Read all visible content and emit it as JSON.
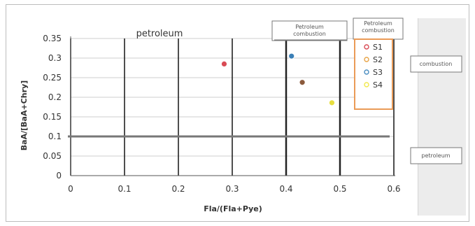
{
  "colors": {
    "s1": "#d94b55",
    "s2": "#e7a447",
    "s3": "#4a8ec1",
    "s4": "#f1e84b",
    "grid": "#222222",
    "threshold": "#777777",
    "legend_border": "#ea9b57"
  },
  "chart_data": {
    "type": "scatter",
    "title": "",
    "xlabel": "Fla/(Fla+Pye)",
    "ylabel": "BaA/[BaA+Chry]",
    "xlim": [
      0,
      0.6
    ],
    "ylim": [
      0,
      0.35
    ],
    "xticks": [
      "0",
      "0.1",
      "0.2",
      "0.3",
      "0.4",
      "0.5",
      "0.6"
    ],
    "yticks": [
      "0",
      "0.05",
      "0.1",
      "0.15",
      "0.2",
      "0.25",
      "0.3",
      "0.35"
    ],
    "threshold_y": 0.1,
    "legend_placement": "upper-right inside plot",
    "series": [
      {
        "name": "S1",
        "x": [
          0.285
        ],
        "y": [
          0.285
        ]
      },
      {
        "name": "S2",
        "x": [
          0.43
        ],
        "y": [
          0.238
        ]
      },
      {
        "name": "S3",
        "x": [
          0.41
        ],
        "y": [
          0.305
        ]
      },
      {
        "name": "S4",
        "x": [
          0.485
        ],
        "y": [
          0.186
        ]
      }
    ],
    "annotations": [
      {
        "text": "petroleum"
      },
      {
        "text": "Petroleum combustion"
      },
      {
        "text": "Petroleum combustion"
      },
      {
        "text": "combustion"
      },
      {
        "text": "petroleum"
      }
    ]
  }
}
